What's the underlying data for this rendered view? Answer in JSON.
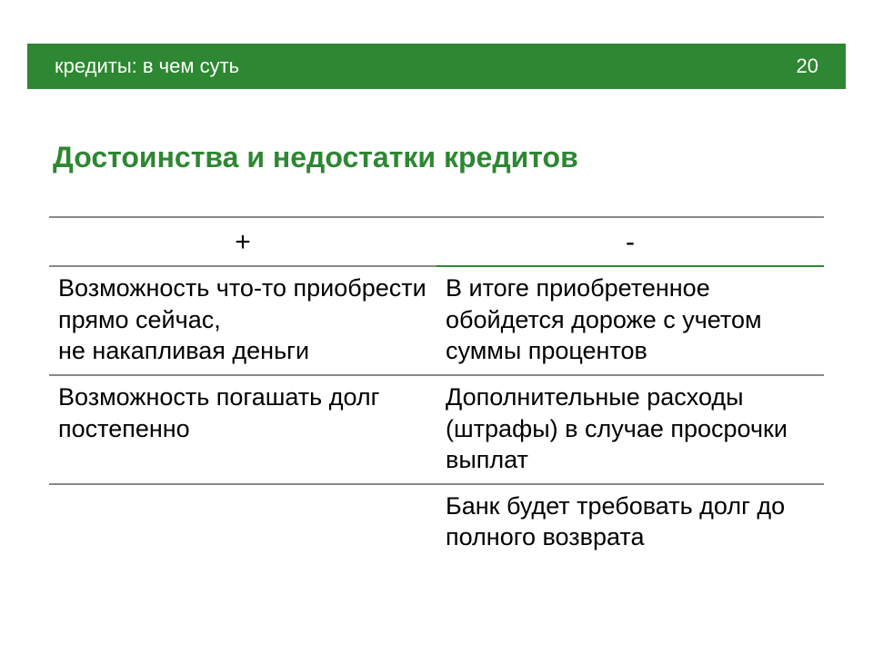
{
  "header": {
    "breadcrumb": "кредиты: в чем суть",
    "page_number": "20"
  },
  "title": "Достоинства и недостатки кредитов",
  "table": {
    "type": "table",
    "columns": [
      "+",
      "-"
    ],
    "colors": {
      "bar_bg": "#2e8732",
      "bar_text": "#ffffff",
      "title_text": "#2e8732",
      "line_gray": "#888888",
      "line_green": "#2e8732",
      "body_text": "#000000",
      "background": "#ffffff"
    },
    "font_sizes": {
      "header_bar": 22,
      "title": 32,
      "col_header": 30,
      "cell": 27
    },
    "rows": [
      {
        "plus": "Возможность что-то приобрести прямо сейчас,\nне накапливая деньги",
        "minus": "В итоге приобретенное обойдется дороже с учетом суммы процентов"
      },
      {
        "plus": "Возможность погашать долг постепенно",
        "minus": "Дополнительные расходы (штрафы) в случае просрочки выплат"
      },
      {
        "plus": "",
        "minus": "Банк будет требовать долг до полного возврата"
      }
    ]
  }
}
